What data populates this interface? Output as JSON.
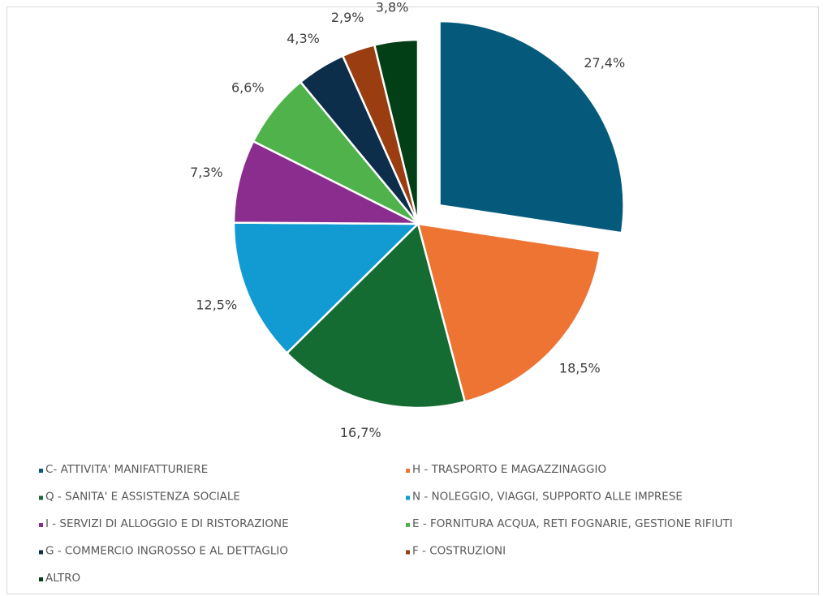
{
  "chart_data": {
    "type": "pie",
    "categories": [
      "C- ATTIVITA' MANIFATTURIERE",
      "H - TRASPORTO E MAGAZZINAGGIO",
      "Q - SANITA' E ASSISTENZA SOCIALE",
      "N - NOLEGGIO, VIAGGI, SUPPORTO ALLE IMPRESE",
      "I - SERVIZI DI ALLOGGIO E DI RISTORAZIONE",
      "E - FORNITURA ACQUA, RETI FOGNARIE, GESTIONE RIFIUTI",
      "G - COMMERCIO INGROSSO E AL DETTAGLIO",
      "F - COSTRUZIONI",
      "ALTRO"
    ],
    "values": [
      27.4,
      18.5,
      16.7,
      12.5,
      7.3,
      6.6,
      4.3,
      2.9,
      3.8
    ],
    "value_labels": [
      "27,4%",
      "18,5%",
      "16,7%",
      "12,5%",
      "7,3%",
      "6,6%",
      "4,3%",
      "2,9%",
      "3,8%"
    ],
    "colors": [
      "#055a7c",
      "#ed7433",
      "#146c33",
      "#119bd2",
      "#8b2d8e",
      "#50b24a",
      "#0c2e4a",
      "#9a3e12",
      "#033f16"
    ],
    "exploded_slices": [
      0
    ],
    "legend": "bottom"
  }
}
